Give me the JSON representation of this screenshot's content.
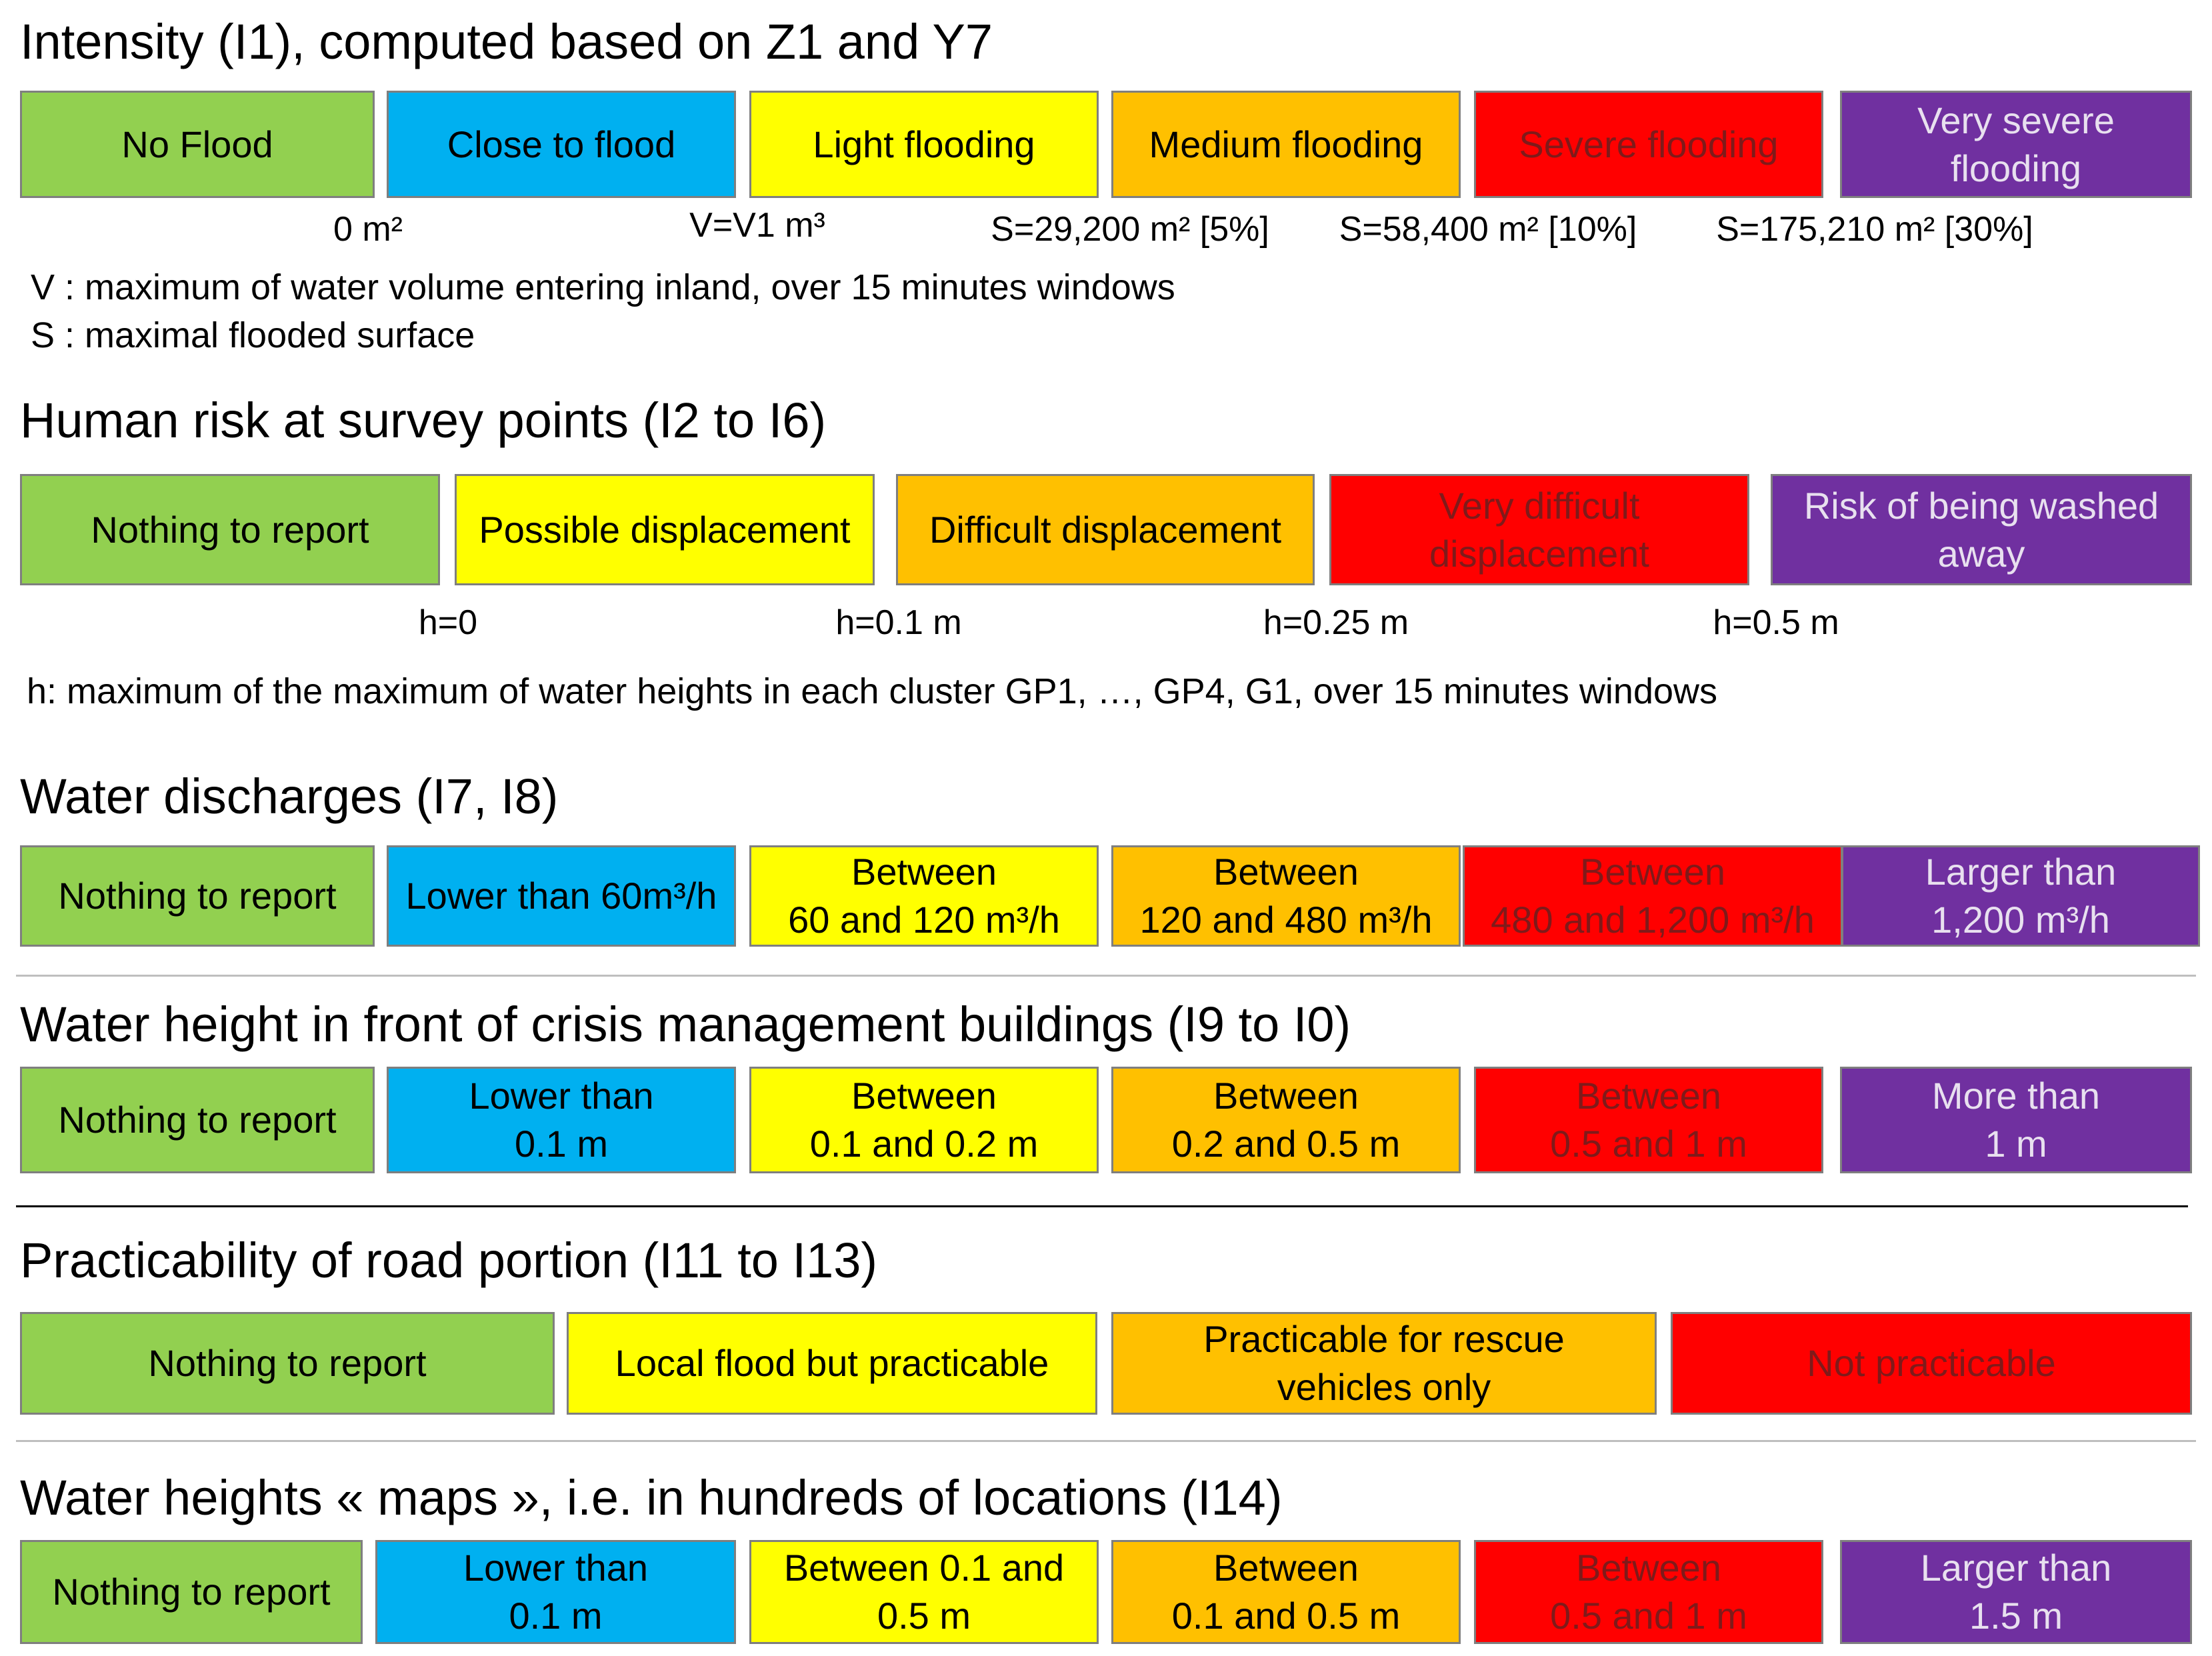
{
  "sections": {
    "intensity": {
      "title": "Intensity (I1), computed based on Z1 and Y7",
      "boxes": [
        "No Flood",
        "Close to flood",
        "Light flooding",
        "Medium flooding",
        "Severe flooding",
        "Very severe\nflooding"
      ],
      "thresholds": [
        "0 m²",
        "V=V1 m³",
        "S=29,200 m² [5%]",
        "S=58,400 m² [10%]",
        "S=175,210 m² [30%]"
      ],
      "notes": [
        "V : maximum of water volume entering inland, over 15 minutes windows",
        "S : maximal flooded surface"
      ]
    },
    "human_risk": {
      "title": "Human risk at survey points (I2 to I6)",
      "boxes": [
        "Nothing to report",
        "Possible displacement",
        "Difficult displacement",
        "Very difficult\ndisplacement",
        "Risk of being washed\naway"
      ],
      "thresholds": [
        "h=0",
        "h=0.1 m",
        "h=0.25 m",
        "h=0.5 m"
      ],
      "note": "h: maximum of the maximum of water heights in each cluster GP1, …, GP4, G1, over 15 minutes windows"
    },
    "discharges": {
      "title": "Water discharges (I7, I8)",
      "boxes": [
        "Nothing to report",
        "Lower than 60m³/h",
        "Between\n60 and 120 m³/h",
        "Between\n120 and 480 m³/h",
        "Between\n480 and 1,200 m³/h",
        "Larger than\n1,200 m³/h"
      ]
    },
    "crisis_buildings": {
      "title": "Water height in front of crisis management buildings (I9 to I0)",
      "boxes": [
        "Nothing to report",
        "Lower than\n0.1 m",
        "Between\n0.1 and 0.2 m",
        "Between\n0.2 and 0.5 m",
        "Between\n0.5 and 1 m",
        "More than\n1 m"
      ]
    },
    "road": {
      "title": "Practicability of road portion (I11 to I13)",
      "boxes": [
        "Nothing to report",
        "Local flood but practicable",
        "Practicable for rescue\nvehicles only",
        "Not practicable"
      ]
    },
    "maps": {
      "title": "Water heights « maps », i.e. in hundreds of locations (I14)",
      "boxes": [
        "Nothing to report",
        "Lower than\n0.1 m",
        "Between 0.1 and\n0.5 m",
        "Between\n0.1 and 0.5 m",
        "Between\n0.5 and 1 m",
        "Larger than\n1.5 m"
      ]
    }
  },
  "colors": {
    "green": "#92d050",
    "blue": "#00b0f0",
    "yellow": "#ffff00",
    "orange": "#ffc000",
    "red": "#ff0000",
    "purple": "#7030a0"
  }
}
